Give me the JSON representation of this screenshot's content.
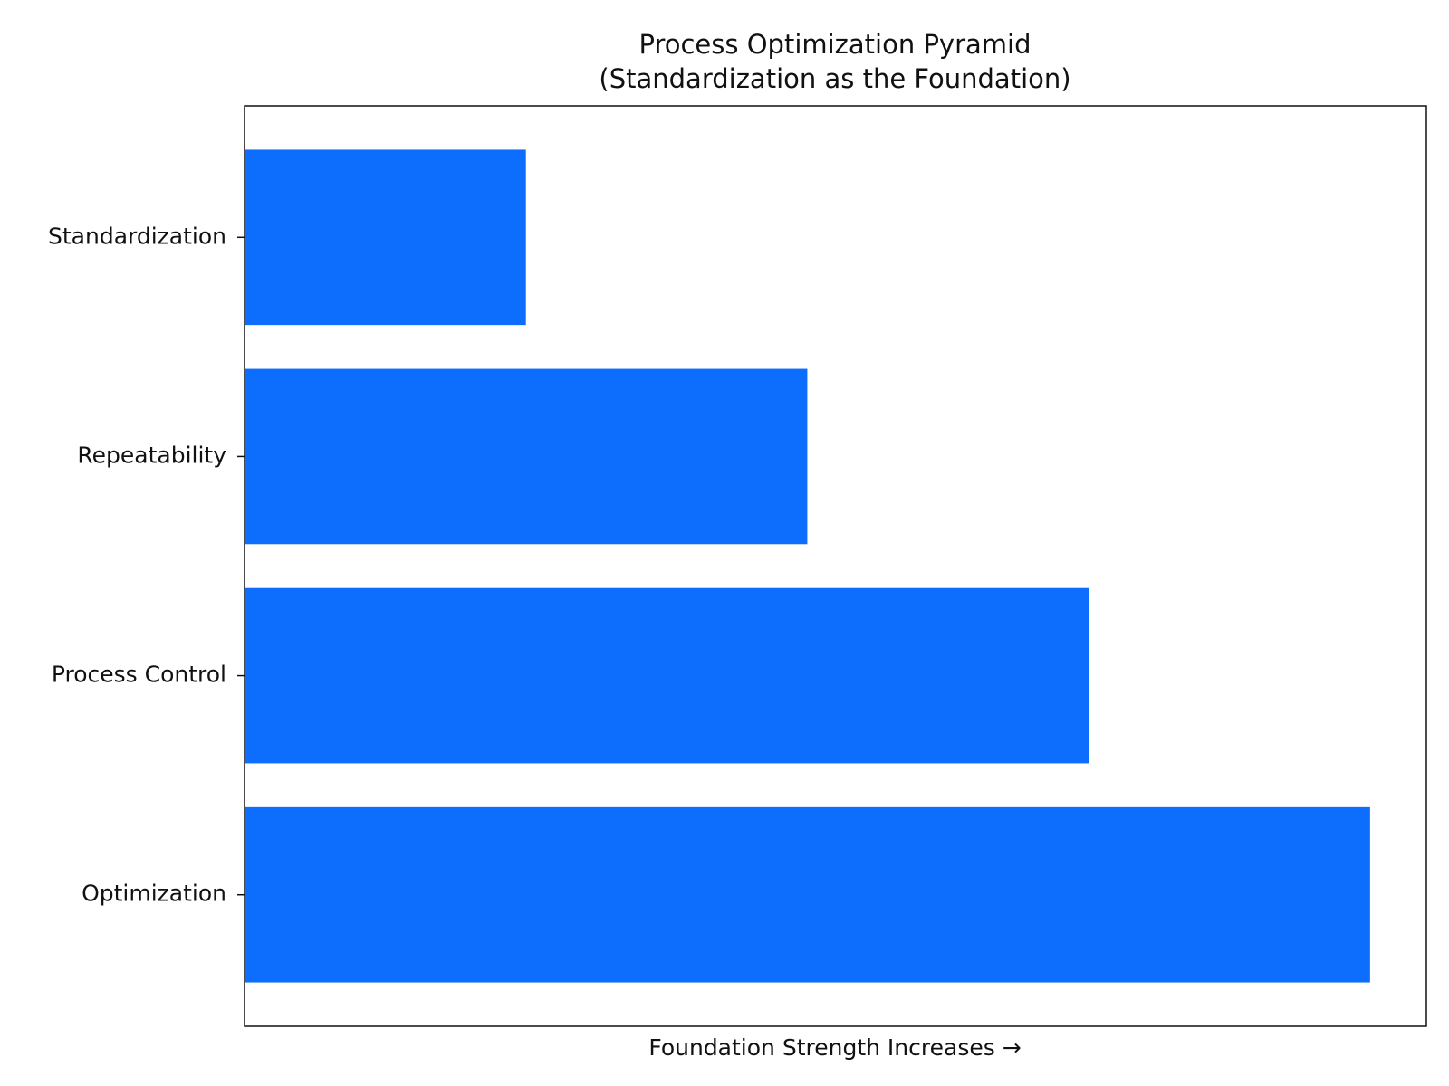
{
  "chart_data": {
    "type": "barh",
    "title": "Process Optimization Pyramid",
    "subtitle": "(Standardization as the Foundation)",
    "x_label": "Foundation Strength Increases →",
    "categories": [
      "Standardization",
      "Repeatability",
      "Process Control",
      "Optimization"
    ],
    "values": [
      1,
      2,
      3,
      4
    ],
    "color": "#0d6efd",
    "xlim": [
      0,
      4.2
    ],
    "grid": false
  }
}
